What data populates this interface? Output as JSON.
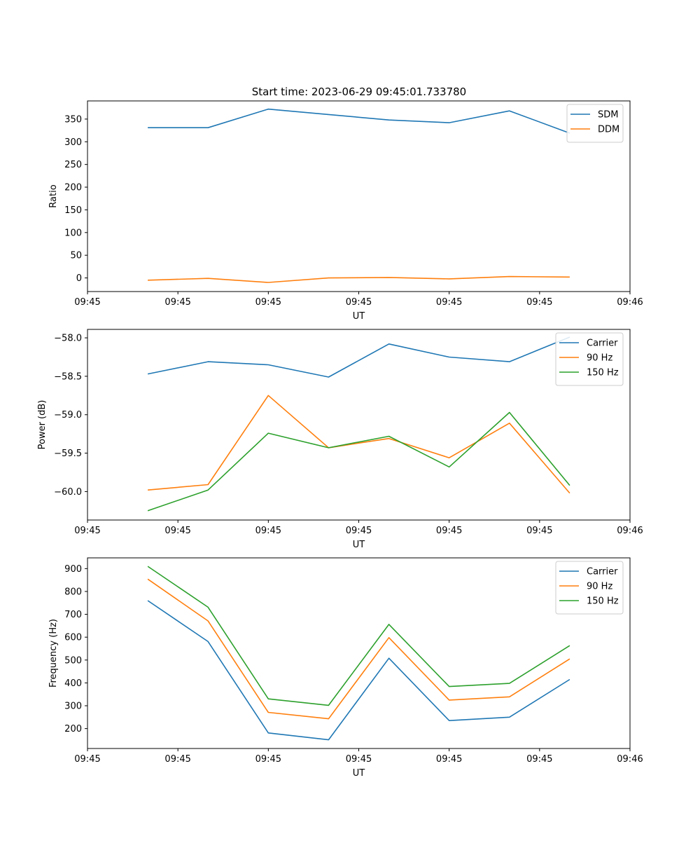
{
  "figure": {
    "title": "Start time: 2023-06-29 09:45:01.733780"
  },
  "chart_data": [
    {
      "type": "line",
      "title": "Start time: 2023-06-29 09:45:01.733780",
      "xlabel": "UT",
      "ylabel": "Ratio",
      "x": [
        1,
        2,
        3,
        4,
        5,
        6,
        7,
        8
      ],
      "xlim": [
        0,
        9
      ],
      "xticks": [
        0,
        1.5,
        3,
        4.5,
        6,
        7.5,
        9
      ],
      "xtick_labels": [
        "09:45",
        "09:45",
        "09:45",
        "09:45",
        "09:45",
        "09:45",
        "09:46"
      ],
      "ylim": [
        -30,
        390
      ],
      "yticks": [
        0,
        50,
        100,
        150,
        200,
        250,
        300,
        350
      ],
      "ytick_labels": [
        "0",
        "50",
        "100",
        "150",
        "200",
        "250",
        "300",
        "350"
      ],
      "legend_position": "top-right",
      "grid": false,
      "series": [
        {
          "name": "SDM",
          "color": "#1f77b4",
          "values": [
            331,
            331,
            372,
            360,
            348,
            342,
            368,
            319
          ]
        },
        {
          "name": "DDM",
          "color": "#ff7f0e",
          "values": [
            -5,
            -1,
            -10,
            0,
            1,
            -2,
            3,
            2
          ]
        }
      ]
    },
    {
      "type": "line",
      "xlabel": "UT",
      "ylabel": "Power (dB)",
      "x": [
        1,
        2,
        3,
        4,
        5,
        6,
        7,
        8
      ],
      "xlim": [
        0,
        9
      ],
      "xticks": [
        0,
        1.5,
        3,
        4.5,
        6,
        7.5,
        9
      ],
      "xtick_labels": [
        "09:45",
        "09:45",
        "09:45",
        "09:45",
        "09:45",
        "09:45",
        "09:46"
      ],
      "ylim": [
        -60.37,
        -57.89
      ],
      "yticks": [
        -60.0,
        -59.5,
        -59.0,
        -58.5,
        -58.0
      ],
      "ytick_labels": [
        "−60.0",
        "−59.5",
        "−59.0",
        "−58.5",
        "−58.0"
      ],
      "legend_position": "top-right",
      "grid": false,
      "series": [
        {
          "name": "Carrier",
          "color": "#1f77b4",
          "values": [
            -58.47,
            -58.31,
            -58.35,
            -58.51,
            -58.08,
            -58.25,
            -58.31,
            -57.99
          ]
        },
        {
          "name": "90 Hz",
          "color": "#ff7f0e",
          "values": [
            -59.98,
            -59.91,
            -58.75,
            -59.43,
            -59.31,
            -59.56,
            -59.11,
            -60.02
          ]
        },
        {
          "name": "150 Hz",
          "color": "#2ca02c",
          "values": [
            -60.25,
            -59.98,
            -59.24,
            -59.43,
            -59.28,
            -59.68,
            -58.97,
            -59.92
          ]
        }
      ]
    },
    {
      "type": "line",
      "xlabel": "UT",
      "ylabel": "Frequency (Hz)",
      "x": [
        1,
        2,
        3,
        4,
        5,
        6,
        7,
        8
      ],
      "xlim": [
        0,
        9
      ],
      "xticks": [
        0,
        1.5,
        3,
        4.5,
        6,
        7.5,
        9
      ],
      "xtick_labels": [
        "09:45",
        "09:45",
        "09:45",
        "09:45",
        "09:45",
        "09:45",
        "09:46"
      ],
      "ylim": [
        113,
        947
      ],
      "yticks": [
        200,
        300,
        400,
        500,
        600,
        700,
        800,
        900
      ],
      "ytick_labels": [
        "200",
        "300",
        "400",
        "500",
        "600",
        "700",
        "800",
        "900"
      ],
      "legend_position": "top-right",
      "grid": false,
      "series": [
        {
          "name": "Carrier",
          "color": "#1f77b4",
          "values": [
            760,
            581,
            181,
            151,
            508,
            235,
            250,
            415
          ]
        },
        {
          "name": "90 Hz",
          "color": "#ff7f0e",
          "values": [
            854,
            671,
            271,
            243,
            598,
            325,
            339,
            505
          ]
        },
        {
          "name": "150 Hz",
          "color": "#2ca02c",
          "values": [
            910,
            731,
            330,
            302,
            656,
            384,
            398,
            563
          ]
        }
      ]
    }
  ]
}
